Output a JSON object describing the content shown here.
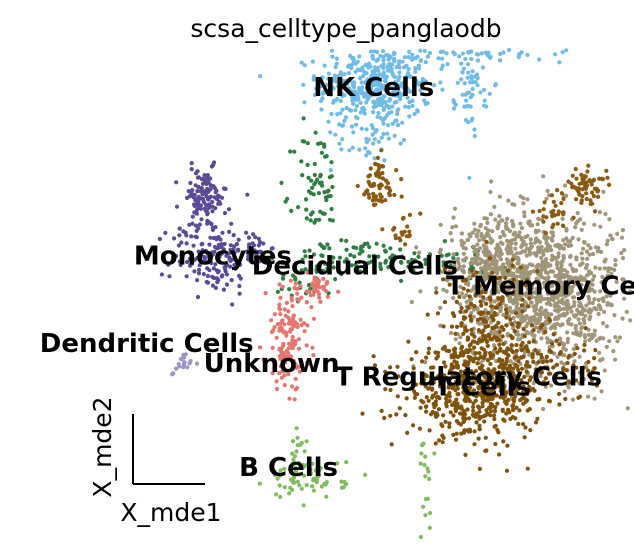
{
  "chart_data": {
    "type": "scatter",
    "title": "scsa_celltype_panglaodb",
    "xlabel": "X_mde1",
    "ylabel": "X_mde2",
    "grid": false,
    "legend": "on data",
    "colors": {
      "NK Cells": "#6fbbe8",
      "Monocytes": "#5b4a96",
      "Decidual Cells": "#2e7d43",
      "T Memory Cells": "#a19578",
      "Dendritic Cells": "#9d93c6",
      "Unknown": "#e5756f",
      "T Regulatory Cells": "#8a5a12",
      "T Cells": "#80520c",
      "B Cells": "#7fbd5c"
    },
    "series": [
      {
        "name": "NK Cells",
        "clusters": [
          {
            "x": 0.36,
            "y": 1.95,
            "sx": 0.3,
            "sy": 0.2,
            "n": 420
          },
          {
            "x": 1.5,
            "y": 2.35,
            "sx": 0.45,
            "sy": 0.08,
            "n": 160
          },
          {
            "x": 1.4,
            "y": 2.0,
            "sx": 0.08,
            "sy": 0.25,
            "n": 60
          },
          {
            "x": 0.3,
            "y": 1.4,
            "sx": 0.15,
            "sy": 0.1,
            "n": 40
          }
        ]
      },
      {
        "name": "Monocytes",
        "clusters": [
          {
            "x": -1.45,
            "y": 0.82,
            "sx": 0.12,
            "sy": 0.15,
            "n": 120
          },
          {
            "x": -1.35,
            "y": 0.25,
            "sx": 0.22,
            "sy": 0.18,
            "n": 140
          },
          {
            "x": -0.95,
            "y": 0.35,
            "sx": 0.1,
            "sy": 0.08,
            "n": 30
          }
        ]
      },
      {
        "name": "Decidual Cells",
        "clusters": [
          {
            "x": -0.25,
            "y": 0.9,
            "sx": 0.12,
            "sy": 0.35,
            "n": 70
          },
          {
            "x": 0.25,
            "y": 0.25,
            "sx": 0.4,
            "sy": 0.08,
            "n": 70
          },
          {
            "x": -0.35,
            "y": 0.0,
            "sx": 0.18,
            "sy": 0.1,
            "n": 30
          },
          {
            "x": 1.25,
            "y": 0.25,
            "sx": 0.3,
            "sy": 0.1,
            "n": 40
          }
        ]
      },
      {
        "name": "T Memory Cells",
        "clusters": [
          {
            "x": 2.1,
            "y": -0.1,
            "sx": 0.45,
            "sy": 0.4,
            "n": 1100
          },
          {
            "x": 1.6,
            "y": 0.25,
            "sx": 0.25,
            "sy": 0.2,
            "n": 200
          }
        ]
      },
      {
        "name": "Dendritic Cells",
        "clusters": [
          {
            "x": -1.7,
            "y": -0.82,
            "sx": 0.06,
            "sy": 0.06,
            "n": 18
          }
        ]
      },
      {
        "name": "Unknown",
        "clusters": [
          {
            "x": -0.55,
            "y": -0.55,
            "sx": 0.12,
            "sy": 0.25,
            "n": 130
          },
          {
            "x": -0.25,
            "y": -0.05,
            "sx": 0.1,
            "sy": 0.08,
            "n": 40
          }
        ]
      },
      {
        "name": "T Regulatory Cells",
        "clusters": [
          {
            "x": 0.4,
            "y": 0.95,
            "sx": 0.1,
            "sy": 0.14,
            "n": 60
          },
          {
            "x": 0.65,
            "y": 0.5,
            "sx": 0.1,
            "sy": 0.08,
            "n": 20
          },
          {
            "x": 2.6,
            "y": 0.95,
            "sx": 0.1,
            "sy": 0.08,
            "n": 60
          },
          {
            "x": 2.25,
            "y": 0.7,
            "sx": 0.1,
            "sy": 0.08,
            "n": 30
          }
        ]
      },
      {
        "name": "T Cells",
        "clusters": [
          {
            "x": 1.4,
            "y": -1.1,
            "sx": 0.35,
            "sy": 0.22,
            "n": 500
          },
          {
            "x": 1.55,
            "y": -0.45,
            "sx": 0.25,
            "sy": 0.35,
            "n": 220
          },
          {
            "x": 2.2,
            "y": -0.8,
            "sx": 0.25,
            "sy": 0.2,
            "n": 100
          }
        ]
      },
      {
        "name": "B Cells",
        "clusters": [
          {
            "x": -0.35,
            "y": -1.95,
            "sx": 0.2,
            "sy": 0.1,
            "n": 70
          },
          {
            "x": -0.45,
            "y": -1.7,
            "sx": 0.05,
            "sy": 0.12,
            "n": 15
          },
          {
            "x": 0.9,
            "y": -2.05,
            "sx": 0.05,
            "sy": 0.25,
            "n": 18
          }
        ]
      }
    ],
    "annotations": [
      {
        "text": "NK Cells",
        "x": 0.35,
        "y": 1.92
      },
      {
        "text": "Monocytes",
        "x": -1.35,
        "y": 0.25
      },
      {
        "text": "Decidual Cells",
        "x": 0.15,
        "y": 0.15
      },
      {
        "text": "T Memory Cells",
        "x": 2.3,
        "y": -0.05
      },
      {
        "text": "Dendritic Cells",
        "x": -2.05,
        "y": -0.62
      },
      {
        "text": "Unknown",
        "x": -0.73,
        "y": -0.82
      },
      {
        "text": "T Regulatory Cells",
        "x": 1.35,
        "y": -0.95
      },
      {
        "text": "T Cells",
        "x": 1.5,
        "y": -1.05
      },
      {
        "text": "B Cells",
        "x": -0.55,
        "y": -1.85
      }
    ],
    "xlim": [
      -3.6,
      3.1
    ],
    "ylim": [
      -2.6,
      2.8
    ]
  }
}
